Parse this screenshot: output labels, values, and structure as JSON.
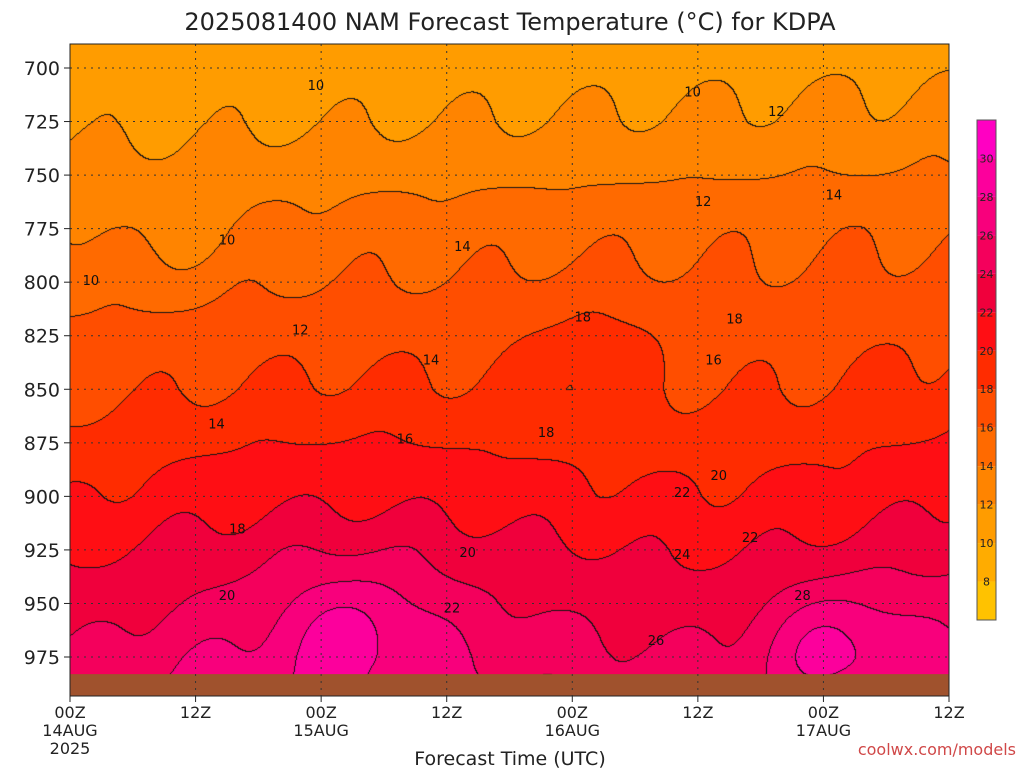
{
  "chart_data": {
    "type": "heatmap",
    "title": "2025081400 NAM Forecast Temperature (°C) for KDPA",
    "xlabel": "Forecast Time (UTC)",
    "x_ticks": [
      {
        "h": 0,
        "label": "00Z",
        "date": "14AUG",
        "year": "2025"
      },
      {
        "h": 12,
        "label": "12Z"
      },
      {
        "h": 24,
        "label": "00Z",
        "date": "15AUG"
      },
      {
        "h": 36,
        "label": "12Z"
      },
      {
        "h": 48,
        "label": "00Z",
        "date": "16AUG"
      },
      {
        "h": 60,
        "label": "12Z"
      },
      {
        "h": 72,
        "label": "00Z",
        "date": "17AUG"
      },
      {
        "h": 84,
        "label": "12Z"
      }
    ],
    "xlim": [
      0,
      84
    ],
    "y_ticks": [
      "700",
      "725",
      "750",
      "775",
      "800",
      "825",
      "850",
      "875",
      "900",
      "925",
      "950",
      "975"
    ],
    "ylim": [
      688,
      990
    ],
    "ground_level": 983,
    "grid": true,
    "colorbar": {
      "levels": [
        6,
        8,
        10,
        12,
        14,
        16,
        18,
        20,
        22,
        24,
        26,
        28,
        30,
        32
      ],
      "labels": [
        "8",
        "10",
        "12",
        "14",
        "16",
        "18",
        "20",
        "22",
        "24",
        "26",
        "28",
        "30"
      ],
      "colors": [
        "#ffc200",
        "#ffac00",
        "#ff9c00",
        "#ff8400",
        "#ff6a00",
        "#ff4e00",
        "#ff2c00",
        "#ff0e14",
        "#f0003c",
        "#f4005c",
        "#f8007c",
        "#fc009c",
        "#ff00c2"
      ]
    },
    "contour_labels": [
      {
        "text": "10",
        "h": 23.5,
        "p": 708
      },
      {
        "text": "10",
        "h": 59.5,
        "p": 711
      },
      {
        "text": "12",
        "h": 67.5,
        "p": 720
      },
      {
        "text": "14",
        "h": 73,
        "p": 759
      },
      {
        "text": "12",
        "h": 60.5,
        "p": 762
      },
      {
        "text": "10",
        "h": 15,
        "p": 780
      },
      {
        "text": "14",
        "h": 37.5,
        "p": 783
      },
      {
        "text": "10",
        "h": 2,
        "p": 799
      },
      {
        "text": "12",
        "h": 22,
        "p": 822
      },
      {
        "text": "18",
        "h": 49,
        "p": 816
      },
      {
        "text": "18",
        "h": 63.5,
        "p": 817
      },
      {
        "text": "14",
        "h": 34.5,
        "p": 836
      },
      {
        "text": "16",
        "h": 61.5,
        "p": 836
      },
      {
        "text": "14",
        "h": 14,
        "p": 866
      },
      {
        "text": "16",
        "h": 32,
        "p": 873
      },
      {
        "text": "18",
        "h": 45.5,
        "p": 870
      },
      {
        "text": "20",
        "h": 62,
        "p": 890
      },
      {
        "text": "22",
        "h": 58.5,
        "p": 898
      },
      {
        "text": "18",
        "h": 16,
        "p": 915
      },
      {
        "text": "22",
        "h": 65,
        "p": 919
      },
      {
        "text": "20",
        "h": 38,
        "p": 926
      },
      {
        "text": "24",
        "h": 58.5,
        "p": 927
      },
      {
        "text": "20",
        "h": 15,
        "p": 946
      },
      {
        "text": "28",
        "h": 70,
        "p": 946
      },
      {
        "text": "22",
        "h": 36.5,
        "p": 952
      },
      {
        "text": "26",
        "h": 56,
        "p": 967
      }
    ],
    "base_profile": [
      [
        700,
        10.5
      ],
      [
        725,
        11.5
      ],
      [
        750,
        13
      ],
      [
        775,
        14.5
      ],
      [
        800,
        15.5
      ],
      [
        825,
        16.5
      ],
      [
        850,
        17.5
      ],
      [
        875,
        19
      ],
      [
        900,
        20.3
      ],
      [
        925,
        22
      ],
      [
        950,
        23.3
      ],
      [
        975,
        24.8
      ],
      [
        990,
        25.5
      ]
    ],
    "hotspots": [
      {
        "h": 27,
        "p": 960,
        "dt": 3
      },
      {
        "h": 73,
        "p": 968,
        "dt": 4
      },
      {
        "h": 50,
        "p": 825,
        "dt": 1.5
      },
      {
        "h": 10,
        "p": 775,
        "dt": -1.5
      }
    ]
  },
  "footer": {
    "credit": "coolwx.com/models"
  }
}
